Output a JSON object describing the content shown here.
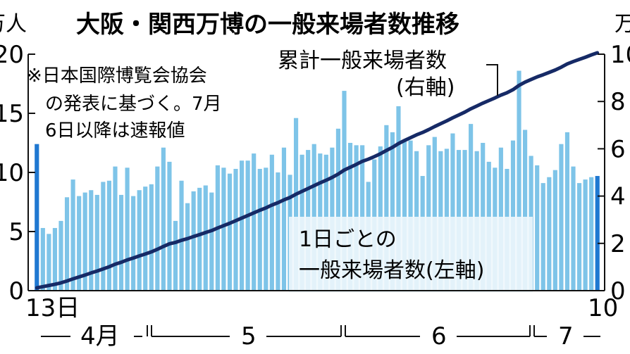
{
  "chart_data": {
    "type": "bar",
    "title": "大阪・関西万博の一般来場者数推移",
    "note": [
      "※日本国際博覧会協会",
      "の発表に基づく。7月",
      "6日以降は速報値"
    ],
    "left_axis": {
      "unit": "万人",
      "ticks": [
        "0",
        "5",
        "10",
        "15",
        "20"
      ],
      "ylim": [
        0,
        20
      ]
    },
    "right_axis": {
      "unit": "万",
      "ticks": [
        "0",
        "2",
        "4",
        "6",
        "8",
        "10"
      ],
      "ylim": [
        0,
        1000
      ]
    },
    "x_axis": {
      "start_label": "13日",
      "end_label": "10",
      "months": [
        "4月",
        "5",
        "6",
        "7"
      ]
    },
    "series": [
      {
        "name": "1日ごとの一般来場者数(左軸)",
        "axis": "left",
        "type": "bar",
        "color": "#7ec4e8",
        "highlight_color": "#1f78d1",
        "values": [
          12.4,
          5.3,
          4.8,
          5.3,
          5.9,
          7.9,
          9.4,
          8.0,
          8.3,
          8.5,
          8.1,
          9.2,
          9.3,
          10.5,
          8.1,
          10.4,
          8.0,
          8.5,
          8.8,
          9.0,
          10.5,
          12.1,
          10.9,
          5.9,
          9.3,
          7.4,
          8.4,
          8.7,
          8.9,
          8.3,
          10.6,
          10.4,
          9.9,
          10.3,
          11.0,
          11.0,
          11.6,
          10.3,
          10.4,
          11.5,
          10.0,
          12.1,
          9.8,
          14.6,
          11.5,
          11.9,
          12.4,
          11.6,
          11.5,
          12.1,
          13.7,
          16.9,
          12.5,
          12.3,
          12.3,
          9.2,
          11.1,
          12.2,
          14.0,
          13.4,
          15.6,
          12.7,
          12.7,
          11.8,
          9.7,
          12.3,
          13.0,
          11.8,
          12.0,
          13.3,
          11.9,
          11.9,
          14.1,
          11.8,
          12.5,
          10.9,
          10.4,
          12.1,
          10.3,
          12.7,
          18.6,
          13.6,
          11.4,
          10.6,
          9.1,
          9.6,
          10.2,
          12.4,
          13.4,
          10.5,
          9.1,
          9.4,
          9.6,
          9.7
        ],
        "highlighted_indices": [
          0,
          93
        ]
      },
      {
        "name": "累計一般来場者数(右軸)",
        "axis": "right",
        "type": "line",
        "color": "#162a66",
        "values": [
          12,
          17,
          22,
          27,
          33,
          41,
          50,
          58,
          66,
          75,
          83,
          92,
          101,
          112,
          120,
          130,
          138,
          147,
          155,
          164,
          175,
          187,
          198,
          204,
          213,
          220,
          229,
          237,
          246,
          254,
          265,
          275,
          285,
          296,
          307,
          318,
          329,
          340,
          350,
          362,
          372,
          384,
          394,
          408,
          420,
          432,
          444,
          456,
          467,
          479,
          493,
          510,
          522,
          534,
          547,
          556,
          567,
          579,
          593,
          606,
          622,
          635,
          647,
          659,
          669,
          681,
          694,
          706,
          718,
          731,
          743,
          755,
          769,
          781,
          793,
          804,
          815,
          827,
          837,
          850,
          868,
          882,
          893,
          904,
          913,
          923,
          933,
          945,
          959,
          969,
          978,
          987,
          997,
          1006
        ]
      }
    ],
    "annotations": {
      "line_label": [
        "累計一般来場者数",
        "(右軸)"
      ],
      "bar_label": [
        "1日ごとの",
        "一般来場者数(左軸)"
      ]
    },
    "grid": false,
    "legend": "none"
  }
}
